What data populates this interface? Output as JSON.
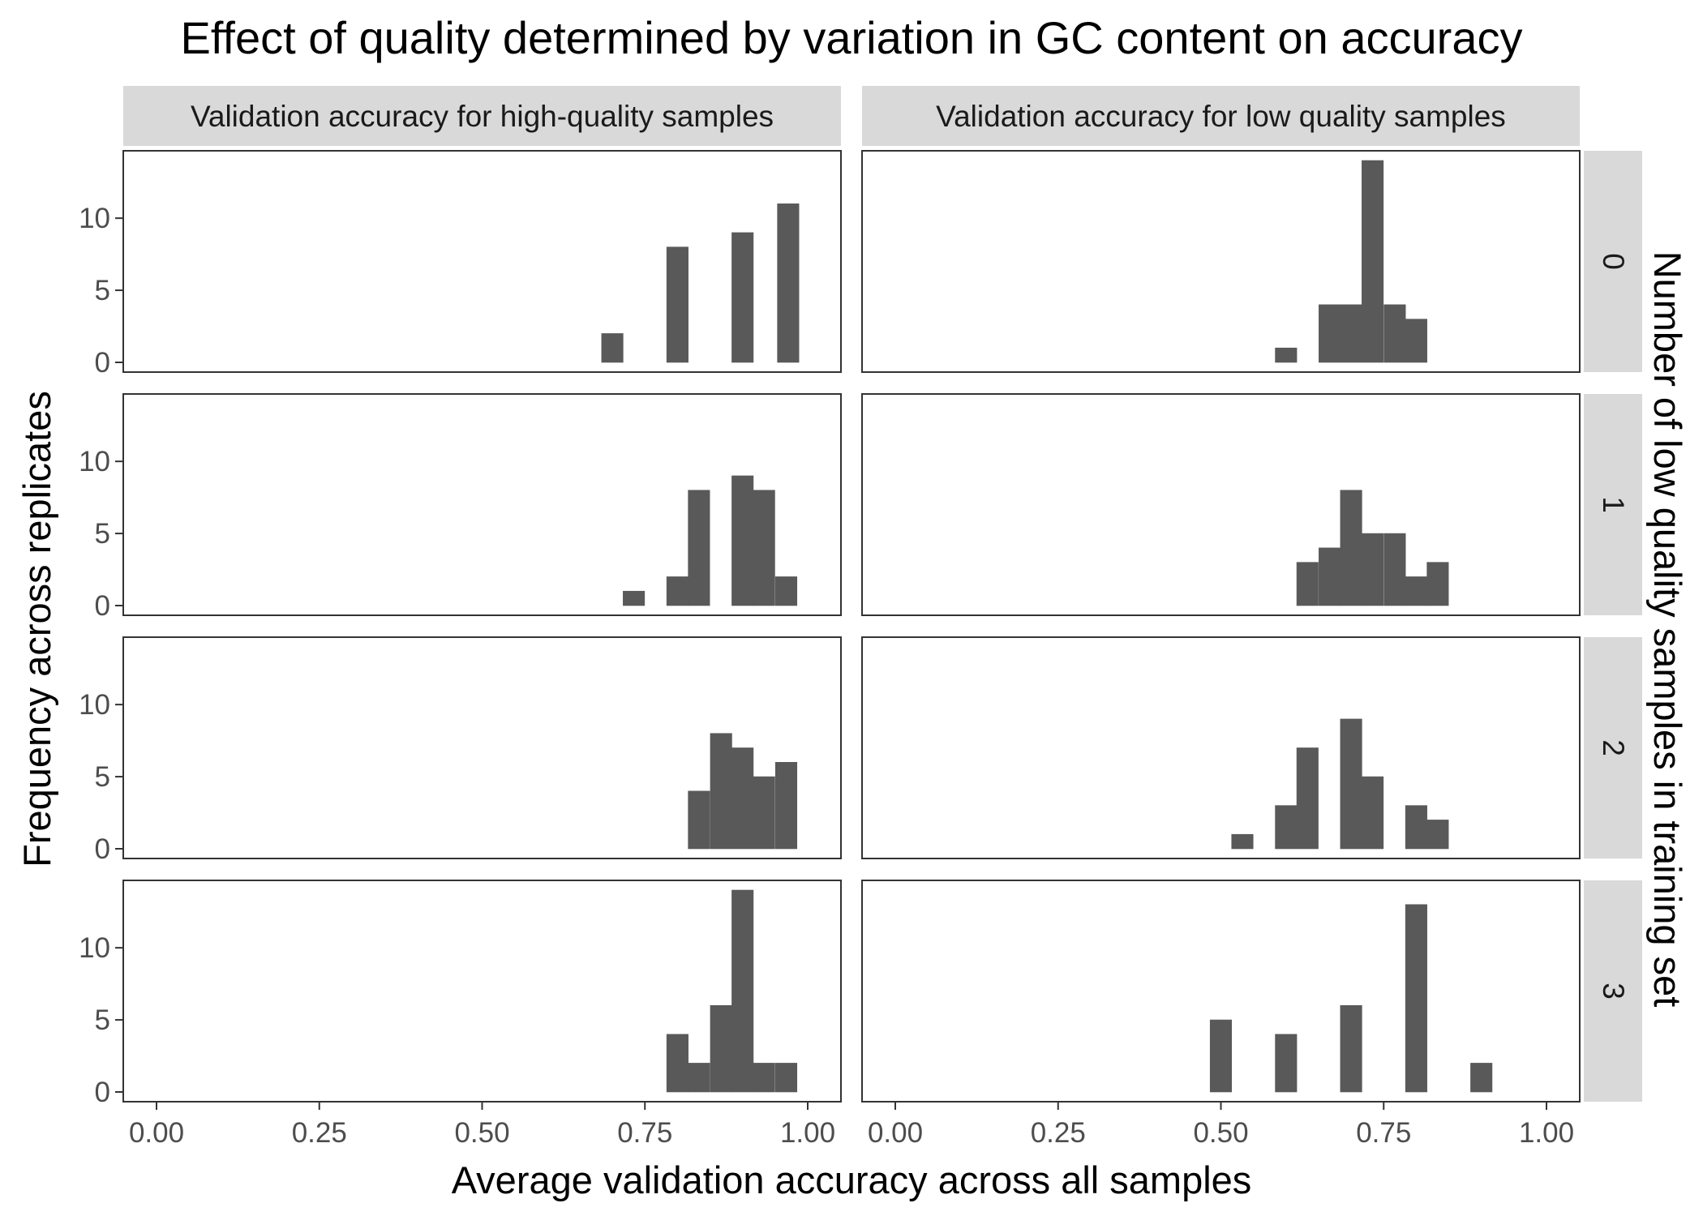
{
  "chart_data": {
    "type": "bar",
    "title": "Effect of quality determined by variation in GC content on accuracy",
    "xlabel": "Average validation accuracy across all samples",
    "ylabel": "Frequency across replicates",
    "facet_row_label": "Number of low quality samples in training set",
    "xlim": [
      0,
      1
    ],
    "ylim": [
      0,
      14
    ],
    "x_ticks": [
      "0.00",
      "0.25",
      "0.50",
      "0.75",
      "1.00"
    ],
    "y_ticks": [
      "0",
      "5",
      "10"
    ],
    "bin_width": 0.033,
    "grid": false,
    "columns": [
      "Validation accuracy for high-quality samples",
      "Validation accuracy for low quality samples"
    ],
    "rows": [
      "0",
      "1",
      "2",
      "3"
    ],
    "panels": [
      {
        "row": "0",
        "column": "Validation accuracy for high-quality samples",
        "bins": [
          {
            "x": 0.7,
            "count": 2
          },
          {
            "x": 0.8,
            "count": 8
          },
          {
            "x": 0.9,
            "count": 9
          },
          {
            "x": 0.97,
            "count": 11
          }
        ]
      },
      {
        "row": "0",
        "column": "Validation accuracy for low quality samples",
        "bins": [
          {
            "x": 0.6,
            "count": 1
          },
          {
            "x": 0.667,
            "count": 4
          },
          {
            "x": 0.7,
            "count": 4
          },
          {
            "x": 0.733,
            "count": 14
          },
          {
            "x": 0.767,
            "count": 4
          },
          {
            "x": 0.8,
            "count": 3
          }
        ]
      },
      {
        "row": "1",
        "column": "Validation accuracy for high-quality samples",
        "bins": [
          {
            "x": 0.733,
            "count": 1
          },
          {
            "x": 0.8,
            "count": 2
          },
          {
            "x": 0.833,
            "count": 8
          },
          {
            "x": 0.9,
            "count": 9
          },
          {
            "x": 0.933,
            "count": 8
          },
          {
            "x": 0.967,
            "count": 2
          }
        ]
      },
      {
        "row": "1",
        "column": "Validation accuracy for low quality samples",
        "bins": [
          {
            "x": 0.633,
            "count": 3
          },
          {
            "x": 0.667,
            "count": 4
          },
          {
            "x": 0.7,
            "count": 8
          },
          {
            "x": 0.733,
            "count": 5
          },
          {
            "x": 0.767,
            "count": 5
          },
          {
            "x": 0.8,
            "count": 2
          },
          {
            "x": 0.833,
            "count": 3
          }
        ]
      },
      {
        "row": "2",
        "column": "Validation accuracy for high-quality samples",
        "bins": [
          {
            "x": 0.833,
            "count": 4
          },
          {
            "x": 0.867,
            "count": 8
          },
          {
            "x": 0.9,
            "count": 7
          },
          {
            "x": 0.933,
            "count": 5
          },
          {
            "x": 0.967,
            "count": 6
          }
        ]
      },
      {
        "row": "2",
        "column": "Validation accuracy for low quality samples",
        "bins": [
          {
            "x": 0.533,
            "count": 1
          },
          {
            "x": 0.6,
            "count": 3
          },
          {
            "x": 0.633,
            "count": 7
          },
          {
            "x": 0.7,
            "count": 9
          },
          {
            "x": 0.733,
            "count": 5
          },
          {
            "x": 0.8,
            "count": 3
          },
          {
            "x": 0.833,
            "count": 2
          }
        ]
      },
      {
        "row": "3",
        "column": "Validation accuracy for high-quality samples",
        "bins": [
          {
            "x": 0.8,
            "count": 4
          },
          {
            "x": 0.833,
            "count": 2
          },
          {
            "x": 0.867,
            "count": 6
          },
          {
            "x": 0.9,
            "count": 14
          },
          {
            "x": 0.933,
            "count": 2
          },
          {
            "x": 0.967,
            "count": 2
          }
        ]
      },
      {
        "row": "3",
        "column": "Validation accuracy for low quality samples",
        "bins": [
          {
            "x": 0.5,
            "count": 5
          },
          {
            "x": 0.6,
            "count": 4
          },
          {
            "x": 0.7,
            "count": 6
          },
          {
            "x": 0.8,
            "count": 13
          },
          {
            "x": 0.9,
            "count": 2
          }
        ]
      }
    ]
  },
  "colors": {
    "bar": "#595959",
    "strip_background": "#d9d9d9",
    "panel_border": "#333333",
    "tick_label": "#4d4d4d"
  }
}
